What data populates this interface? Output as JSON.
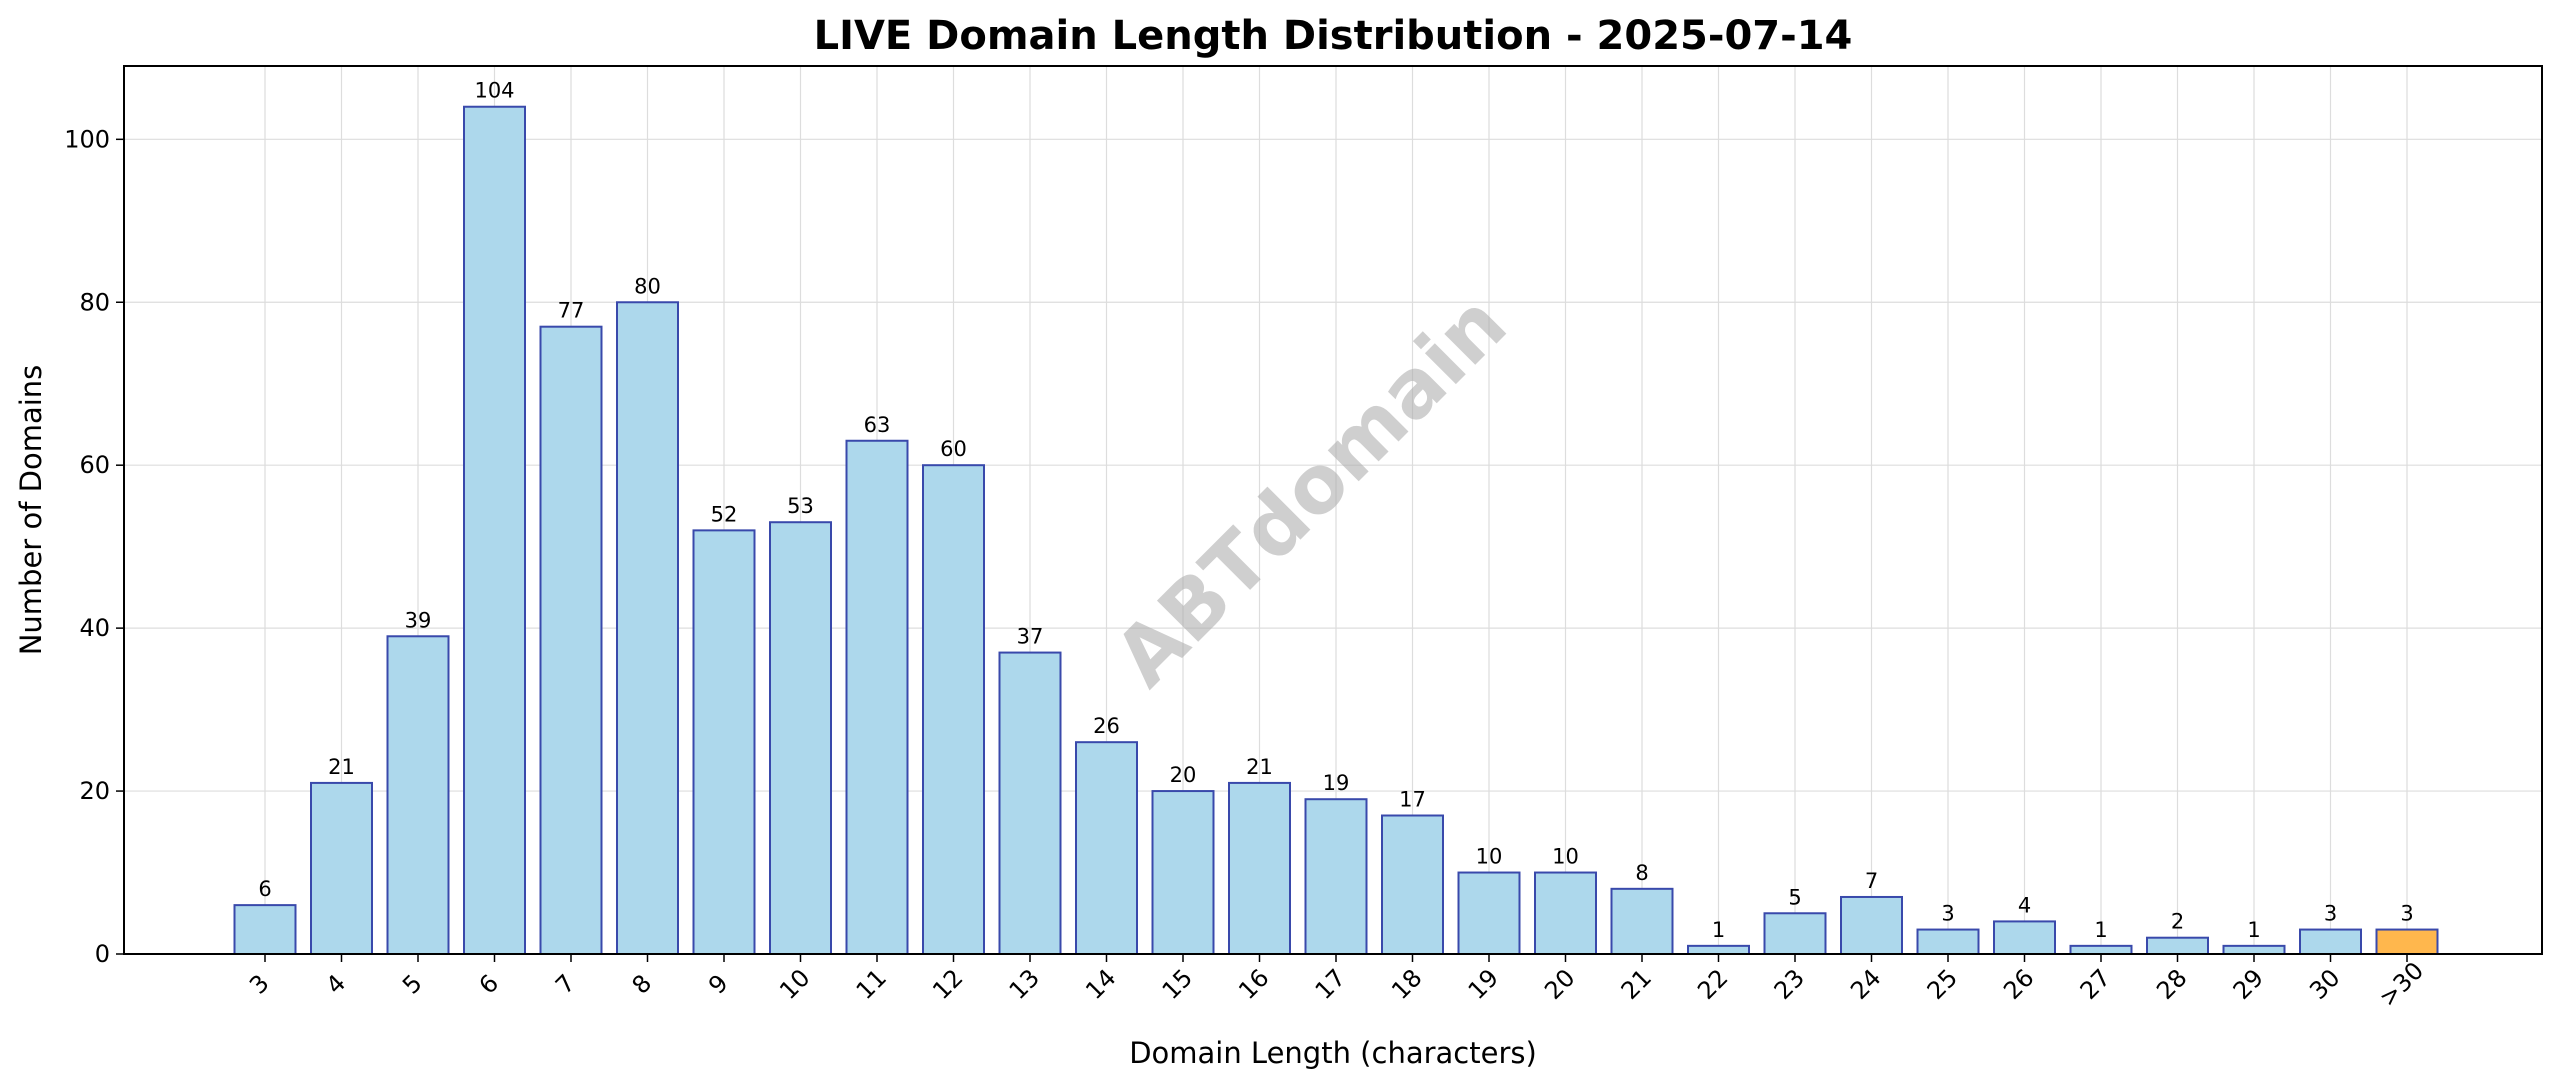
{
  "chart_data": {
    "type": "bar",
    "title": "LIVE Domain Length Distribution - 2025-07-14",
    "xlabel": "Domain Length (characters)",
    "ylabel": "Number of Domains",
    "categories": [
      "3",
      "4",
      "5",
      "6",
      "7",
      "8",
      "9",
      "10",
      "11",
      "12",
      "13",
      "14",
      "15",
      "16",
      "17",
      "18",
      "19",
      "20",
      "21",
      "22",
      "23",
      "24",
      "25",
      "26",
      "27",
      "28",
      "29",
      "30",
      ">30"
    ],
    "values": [
      6,
      21,
      39,
      104,
      77,
      80,
      52,
      53,
      63,
      60,
      37,
      26,
      20,
      21,
      19,
      17,
      10,
      10,
      8,
      1,
      5,
      7,
      3,
      4,
      1,
      2,
      1,
      3,
      3
    ],
    "ylim": [
      0,
      109
    ],
    "yticks": [
      0,
      20,
      40,
      60,
      80,
      100
    ],
    "grid": true,
    "bar_color": "#add8ec",
    "bar_edge_color": "#3949ab",
    "highlight_category": ">30",
    "highlight_color": "#ffb74d",
    "watermark": "ABTdomain"
  }
}
